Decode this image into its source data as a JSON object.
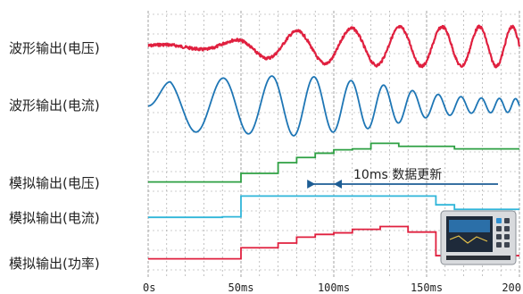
{
  "chart_data": {
    "type": "line",
    "title": "",
    "xlabel": "",
    "ylabel": "",
    "x_unit": "ms",
    "xlim": [
      0,
      200
    ],
    "x_ticks": [
      {
        "value": 0,
        "label": "0s"
      },
      {
        "value": 50,
        "label": "50ms"
      },
      {
        "value": 100,
        "label": "100ms"
      },
      {
        "value": 150,
        "label": "150ms"
      },
      {
        "value": 200,
        "label": "200"
      }
    ],
    "grid": true,
    "annotation": {
      "text": "10ms 数据更新",
      "x_start": 90,
      "x_end": 100
    },
    "colors": {
      "voltage": "#e0203f",
      "current": "#1e76b5",
      "analog_voltage": "#2ea043",
      "analog_current": "#2fb5d9",
      "analog_power": "#e0203f",
      "grid": "#9a9a9a",
      "arrow": "#1d5d94"
    },
    "series": [
      {
        "name": "波形输出(电压)",
        "kind": "waveform",
        "series_key": "voltage",
        "amplitude": [
          {
            "x": 0,
            "v": 0.08
          },
          {
            "x": 25,
            "v": 0.12
          },
          {
            "x": 45,
            "v": 0.3
          },
          {
            "x": 60,
            "v": 0.55
          },
          {
            "x": 80,
            "v": 0.78
          },
          {
            "x": 100,
            "v": 0.9
          },
          {
            "x": 140,
            "v": 1.0
          },
          {
            "x": 200,
            "v": 1.0
          }
        ]
      },
      {
        "name": "波形输出(电流)",
        "kind": "waveform",
        "series_key": "current",
        "amplitude": [
          {
            "x": 0,
            "v": 0.1
          },
          {
            "x": 12,
            "v": 0.85
          },
          {
            "x": 40,
            "v": 0.9
          },
          {
            "x": 80,
            "v": 1.0
          },
          {
            "x": 120,
            "v": 0.75
          },
          {
            "x": 150,
            "v": 0.4
          },
          {
            "x": 175,
            "v": 0.25
          },
          {
            "x": 200,
            "v": 0.22
          }
        ]
      },
      {
        "name": "模拟输出(电压)",
        "kind": "step",
        "series_key": "analog_voltage",
        "steps": [
          {
            "x": 0,
            "level": 0.05
          },
          {
            "x": 40,
            "level": 0.05
          },
          {
            "x": 50,
            "level": 0.25
          },
          {
            "x": 65,
            "level": 0.25
          },
          {
            "x": 70,
            "level": 0.5
          },
          {
            "x": 80,
            "level": 0.62
          },
          {
            "x": 90,
            "level": 0.72
          },
          {
            "x": 100,
            "level": 0.8
          },
          {
            "x": 110,
            "level": 0.82
          },
          {
            "x": 120,
            "level": 0.95
          },
          {
            "x": 135,
            "level": 0.88
          },
          {
            "x": 145,
            "level": 0.88
          },
          {
            "x": 165,
            "level": 0.82
          },
          {
            "x": 200,
            "level": 0.82
          }
        ]
      },
      {
        "name": "模拟输出(电流)",
        "kind": "step",
        "series_key": "analog_current",
        "steps": [
          {
            "x": 0,
            "level": 0.1
          },
          {
            "x": 10,
            "level": 0.1
          },
          {
            "x": 40,
            "level": 0.12
          },
          {
            "x": 50,
            "level": 0.95
          },
          {
            "x": 110,
            "level": 0.95
          },
          {
            "x": 155,
            "level": 0.6
          },
          {
            "x": 165,
            "level": 0.42
          },
          {
            "x": 185,
            "level": 0.42
          },
          {
            "x": 195,
            "level": 0.42
          },
          {
            "x": 200,
            "level": 0.42
          }
        ]
      },
      {
        "name": "模拟输出(功率)",
        "kind": "step",
        "series_key": "analog_power",
        "steps": [
          {
            "x": 0,
            "level": 0.1
          },
          {
            "x": 40,
            "level": 0.1
          },
          {
            "x": 50,
            "level": 0.38
          },
          {
            "x": 70,
            "level": 0.5
          },
          {
            "x": 80,
            "level": 0.65
          },
          {
            "x": 90,
            "level": 0.72
          },
          {
            "x": 100,
            "level": 0.76
          },
          {
            "x": 110,
            "level": 0.85
          },
          {
            "x": 125,
            "level": 0.92
          },
          {
            "x": 140,
            "level": 0.78
          },
          {
            "x": 145,
            "level": 0.78
          },
          {
            "x": 155,
            "level": 0.18
          },
          {
            "x": 160,
            "level": 0.18
          },
          {
            "x": 200,
            "level": 0.18
          }
        ]
      }
    ]
  },
  "device_icon": "power-analyzer-instrument-icon"
}
